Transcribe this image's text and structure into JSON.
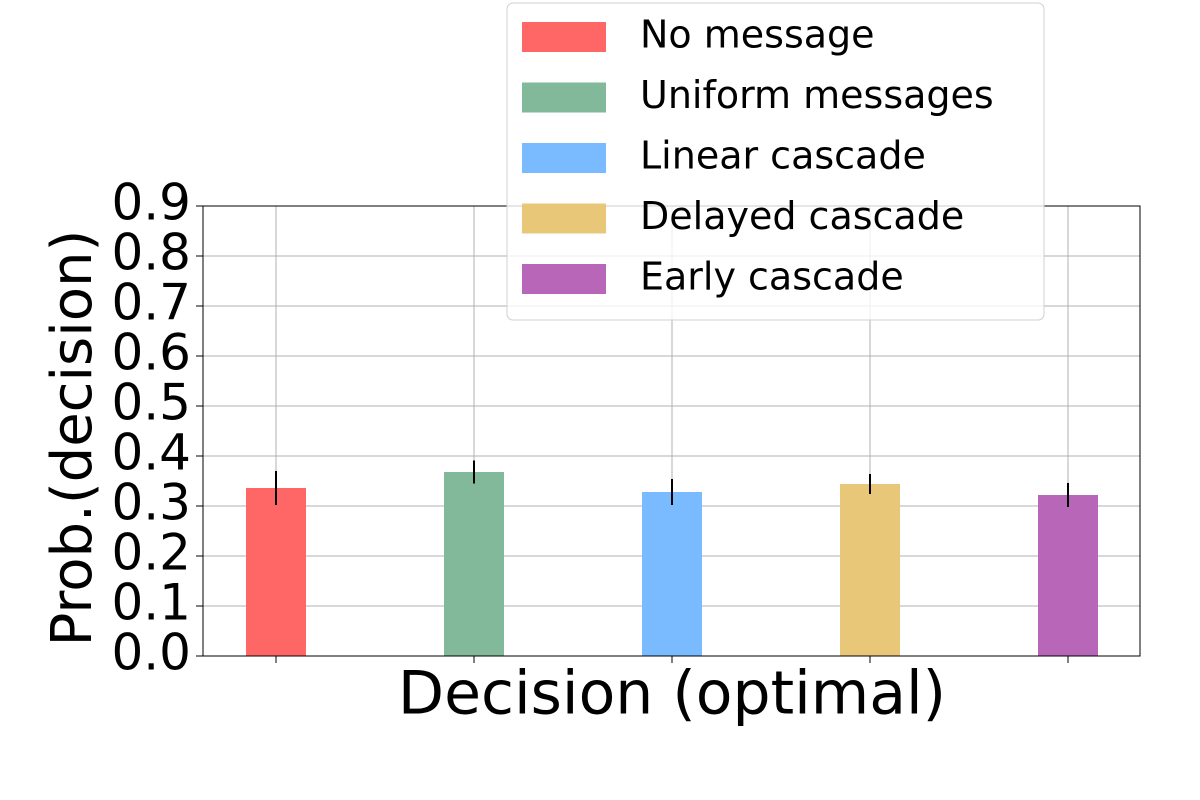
{
  "chart_data": {
    "type": "bar",
    "xlabel": "Decision (optimal)",
    "ylabel": "Prob.(decision)",
    "categories": [
      null
    ],
    "series": [
      {
        "name": "No message",
        "color": "#ff6666",
        "values": [
          0.336
        ],
        "errors": [
          0.034
        ]
      },
      {
        "name": "Uniform messages",
        "color": "#82b99a",
        "values": [
          0.368
        ],
        "errors": [
          0.023
        ]
      },
      {
        "name": "Linear cascade",
        "color": "#7abaff",
        "values": [
          0.328
        ],
        "errors": [
          0.026
        ]
      },
      {
        "name": "Delayed cascade",
        "color": "#e8c878",
        "values": [
          0.344
        ],
        "errors": [
          0.02
        ]
      },
      {
        "name": "Early cascade",
        "color": "#b866b8",
        "values": [
          0.322
        ],
        "errors": [
          0.024
        ]
      }
    ],
    "ylim": [
      0,
      0.9
    ],
    "yticks": [
      {
        "value": 0,
        "label": "0.0"
      },
      0.1,
      0.2,
      0.3,
      0.4,
      0.5,
      0.6,
      0.7,
      0.8,
      0.9
    ],
    "grid": true
  }
}
